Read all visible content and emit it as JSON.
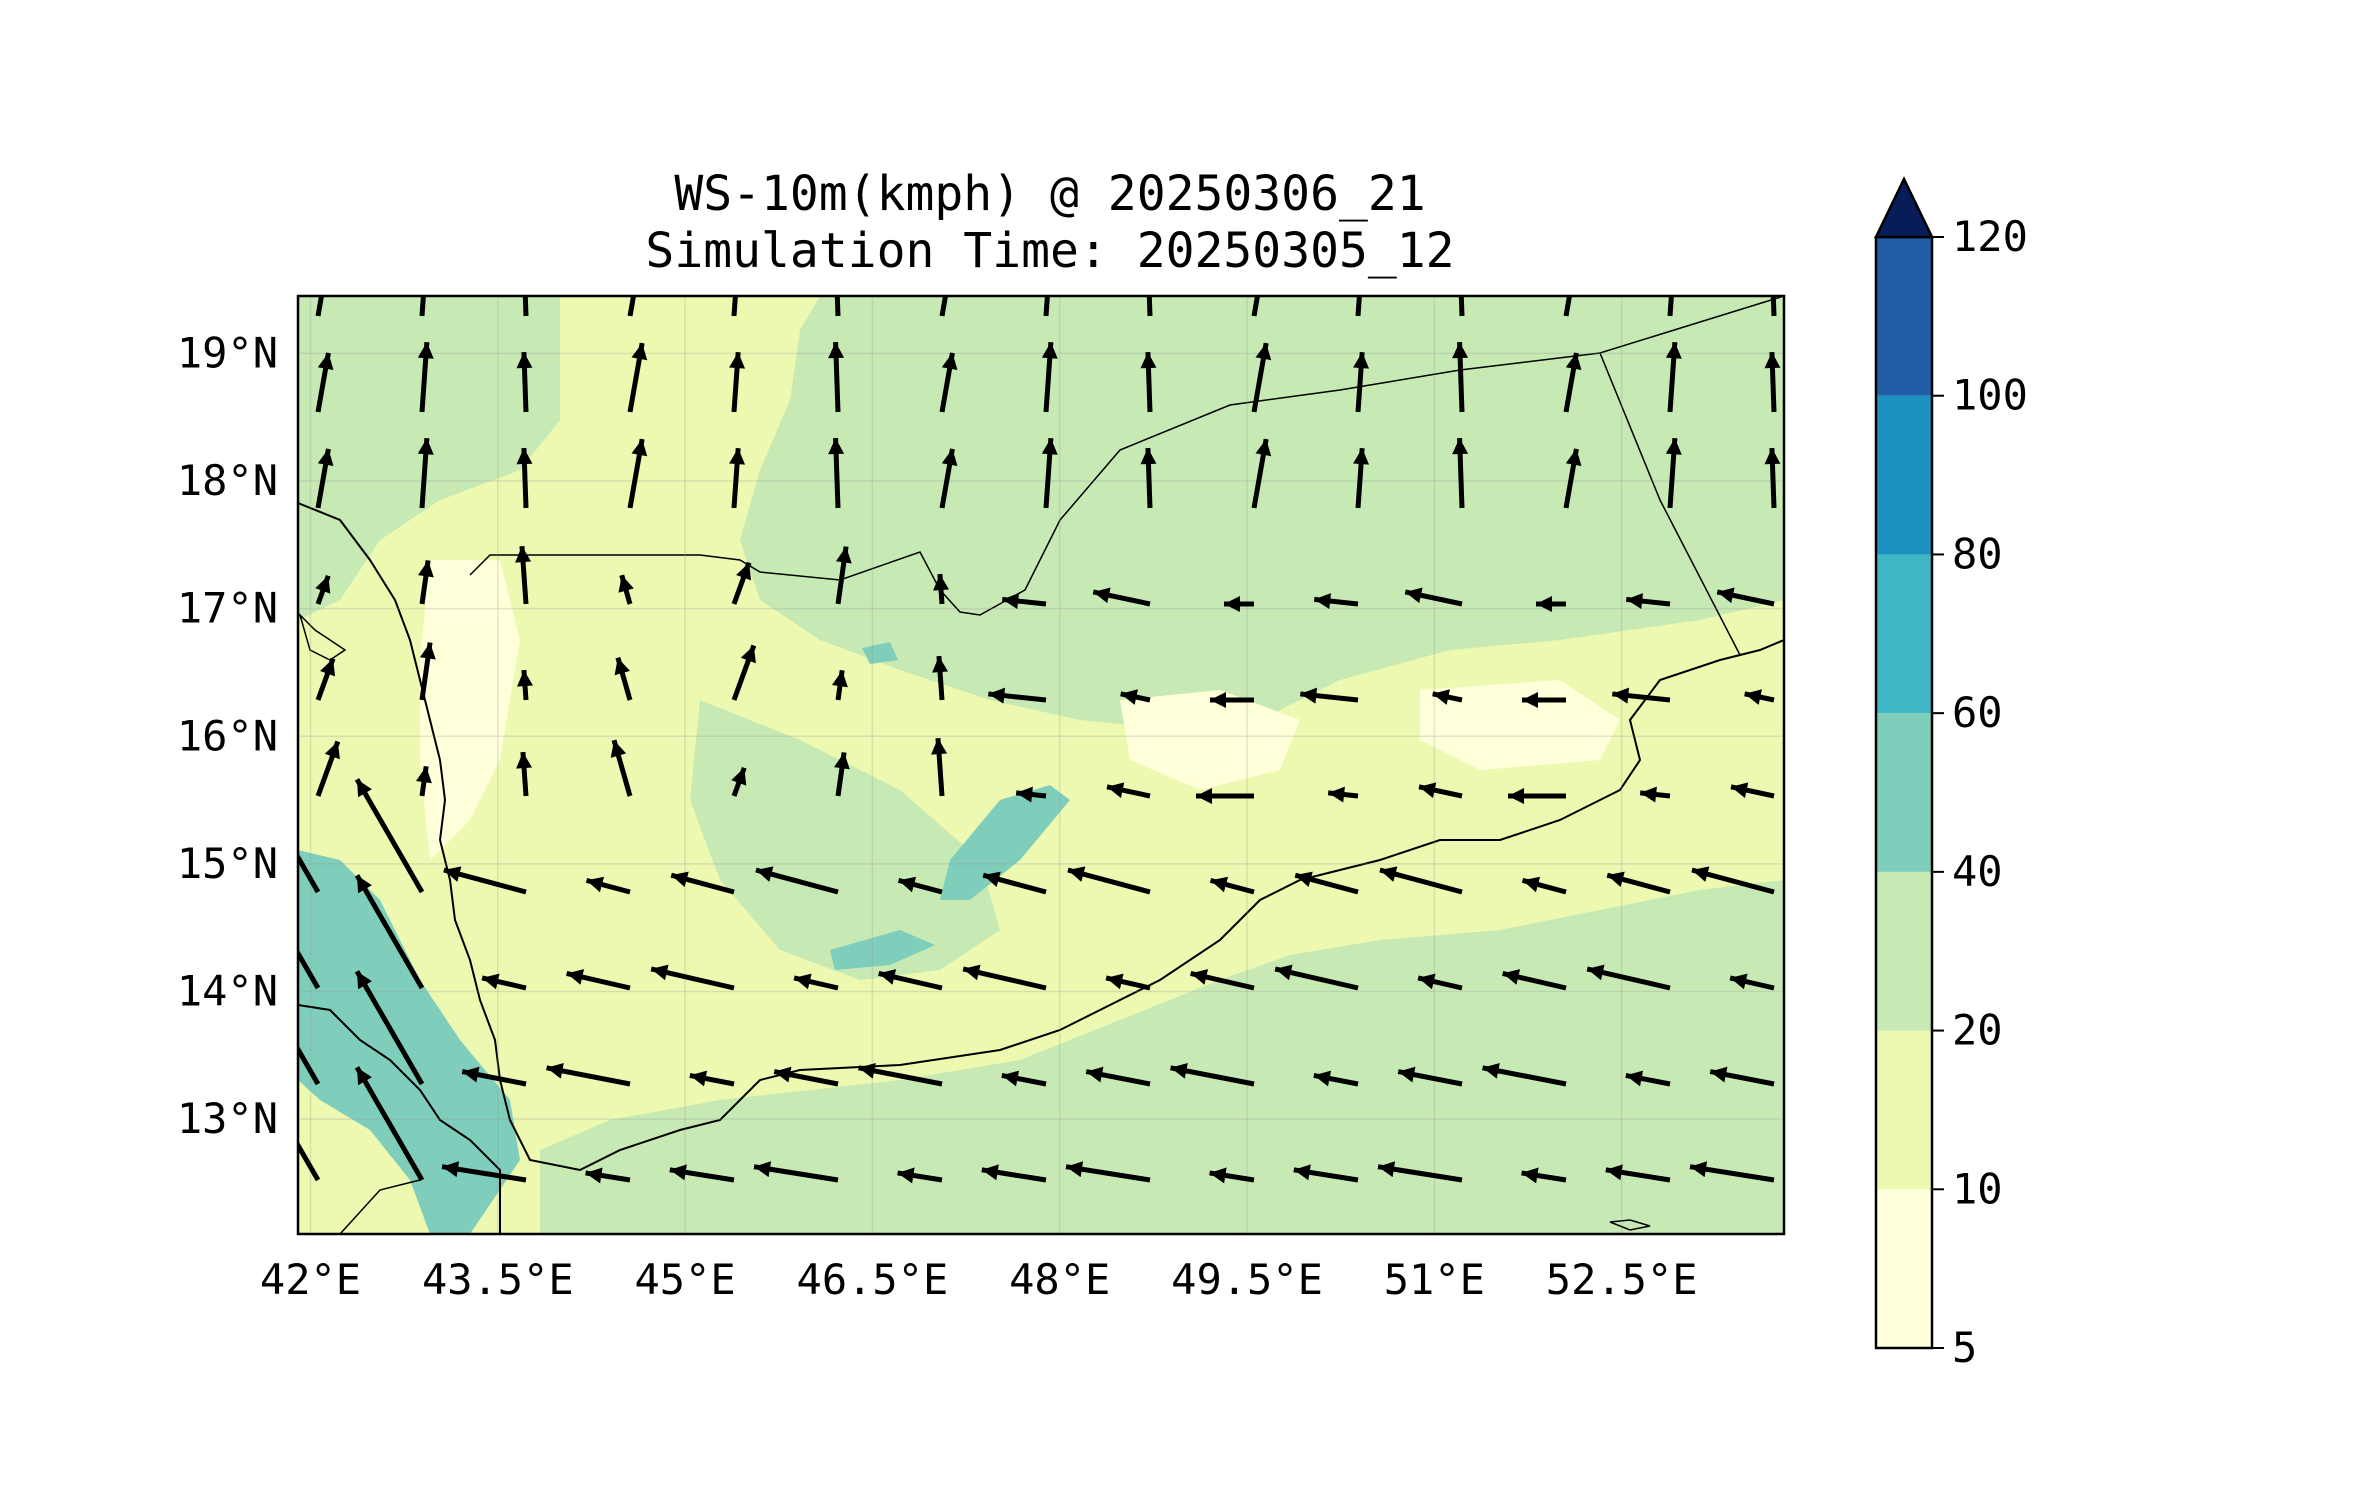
{
  "title_line1": "WS-10m(kmph) @ 20250306_21",
  "title_line2": "Simulation Time: 20250305_12",
  "map": {
    "lon_range": [
      41.9,
      53.8
    ],
    "lat_range": [
      12.1,
      19.45
    ],
    "lon_ticks": [
      "42°E",
      "43.5°E",
      "45°E",
      "46.5°E",
      "48°E",
      "49.5°E",
      "51°E",
      "52.5°E"
    ],
    "lat_ticks": [
      "19°N",
      "18°N",
      "17°N",
      "16°N",
      "15°N",
      "14°N",
      "13°N"
    ],
    "gridlines": true
  },
  "colorbar": {
    "levels": [
      "5",
      "10",
      "20",
      "40",
      "60",
      "80",
      "100",
      "120"
    ],
    "colors": [
      "#ffffd9",
      "#edf8b1",
      "#c7e9b4",
      "#7fcdbb",
      "#41b6c4",
      "#1d91c0",
      "#225ea8",
      "#0c2c84"
    ],
    "extend": "max",
    "extend_color": "#081d58"
  },
  "colors": {
    "background_field": "#edf8b1",
    "coastline": "#000000",
    "arrow": "#000000"
  }
}
